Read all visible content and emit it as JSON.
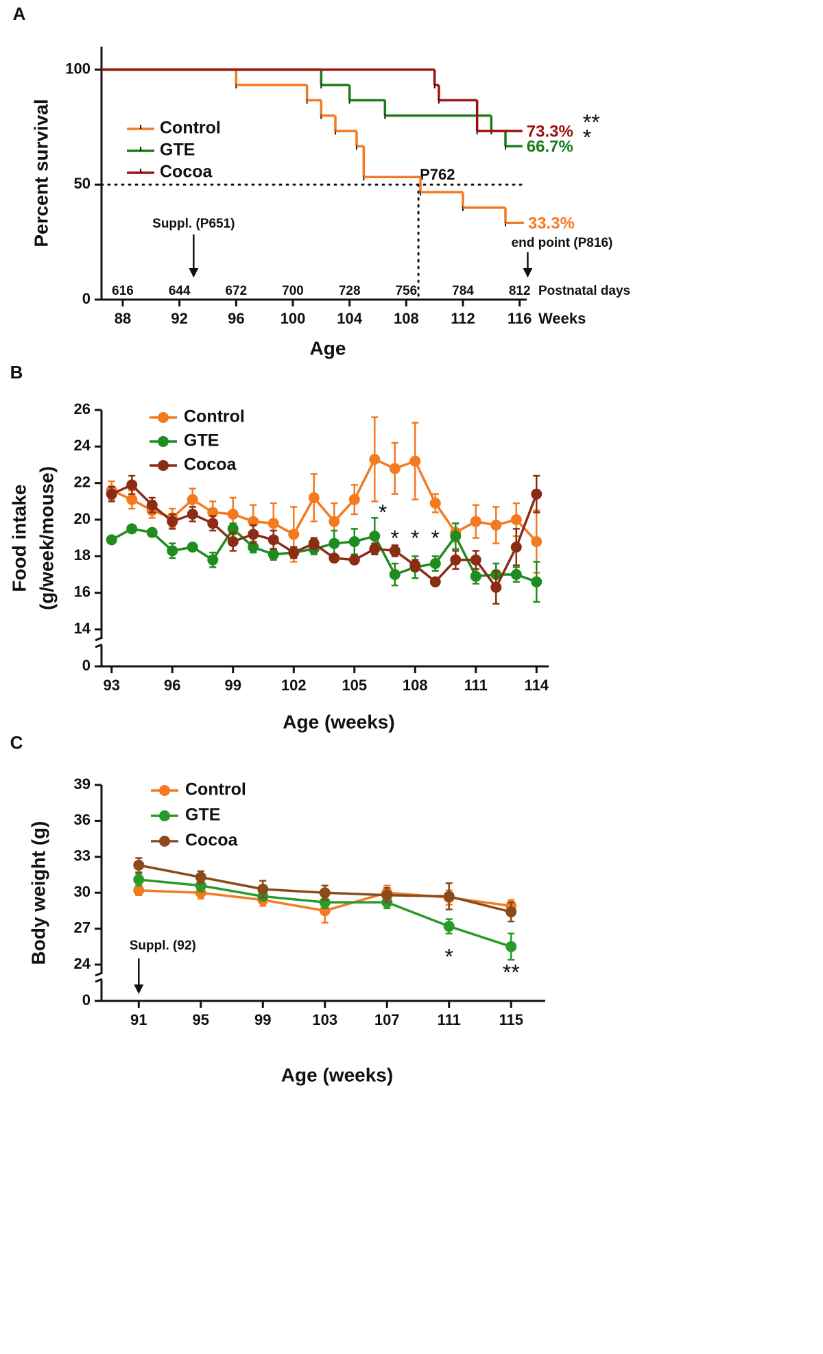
{
  "panels": [
    "A",
    "B",
    "C"
  ],
  "chart_data": [
    {
      "type": "step",
      "y_label": "Percent survival",
      "x_label": "Age",
      "x_unit_label": "Weeks",
      "x2_unit_label": "Postnatal days",
      "xlim": [
        86.5,
        116.5
      ],
      "xticks": [
        88,
        92,
        96,
        100,
        104,
        108,
        112,
        116
      ],
      "x2lim": [
        605.5,
        815.5
      ],
      "x2ticks": [
        616,
        644,
        672,
        700,
        728,
        756,
        784,
        812
      ],
      "ylim": [
        0,
        110
      ],
      "yticks": [
        0,
        50,
        100
      ],
      "hline": 50,
      "vline": 108.86,
      "vline_label": "P762",
      "series": [
        {
          "name": "Control",
          "color": "#f47a20",
          "x": [
            86.5,
            96,
            101,
            102,
            103,
            104.5,
            105,
            109,
            112,
            115,
            116.3
          ],
          "values": [
            100,
            93.3,
            86.7,
            80,
            73.3,
            66.7,
            53.3,
            46.7,
            40,
            33.3,
            33.3
          ],
          "end_label": "33.3%"
        },
        {
          "name": "GTE",
          "color": "#1a7a1a",
          "x": [
            86.5,
            102,
            104,
            106.5,
            114,
            115,
            116.2
          ],
          "values": [
            100,
            93.3,
            86.7,
            80,
            73.3,
            66.7,
            66.7
          ],
          "end_label": "66.7%",
          "significance": "*"
        },
        {
          "name": "Cocoa",
          "color": "#9e1010",
          "x": [
            86.5,
            110,
            110.3,
            113,
            116.2
          ],
          "values": [
            100,
            93.3,
            86.7,
            73.3,
            73.3
          ],
          "end_label": "73.3%",
          "significance": "**"
        }
      ],
      "annotations": [
        {
          "text": "Suppl. (P651)",
          "x": 93,
          "arrow": true
        },
        {
          "text": "end point (P816)",
          "x": 116.57,
          "arrow": true
        }
      ]
    },
    {
      "type": "line",
      "y_label": [
        "Food intake",
        "(g/week/mouse)"
      ],
      "x_label": "Age (weeks)",
      "xlim": [
        92.5,
        114.6
      ],
      "xticks": [
        93,
        96,
        99,
        102,
        105,
        108,
        111,
        114
      ],
      "ylim": [
        14,
        26
      ],
      "yticks": [
        14,
        16,
        18,
        20,
        22,
        24,
        26
      ],
      "break_ticks": [
        0
      ],
      "x": [
        93,
        94,
        95,
        96,
        97,
        98,
        99,
        100,
        101,
        102,
        103,
        104,
        105,
        106,
        107,
        108,
        109,
        110,
        111,
        112,
        113,
        114
      ],
      "series": [
        {
          "name": "Control",
          "color": "#f47a20",
          "values": [
            21.6,
            21.1,
            20.5,
            20.1,
            21.1,
            20.4,
            20.3,
            19.9,
            19.8,
            19.2,
            21.2,
            19.9,
            21.1,
            23.3,
            22.8,
            23.2,
            20.9,
            19.3,
            19.9,
            19.7,
            20.0,
            18.8
          ],
          "errors": [
            0.5,
            0.5,
            0.4,
            0.5,
            0.6,
            0.6,
            0.9,
            0.9,
            1.1,
            1.5,
            1.3,
            1.0,
            0.8,
            2.3,
            1.4,
            2.1,
            0.5,
            0.5,
            0.9,
            1.0,
            0.9,
            1.7
          ]
        },
        {
          "name": "GTE",
          "color": "#1e8c1e",
          "values": [
            18.9,
            19.5,
            19.3,
            18.3,
            18.5,
            17.8,
            19.5,
            18.5,
            18.1,
            18.2,
            18.4,
            18.7,
            18.8,
            19.1,
            17.0,
            17.4,
            17.6,
            19.1,
            16.9,
            17.0,
            17.0,
            16.6
          ],
          "errors": [
            0.1,
            0.1,
            0.1,
            0.4,
            0.2,
            0.4,
            0.3,
            0.3,
            0.3,
            0.3,
            0.3,
            0.7,
            0.7,
            1.0,
            0.6,
            0.6,
            0.4,
            0.7,
            0.4,
            0.6,
            0.4,
            1.1
          ]
        },
        {
          "name": "Cocoa",
          "color": "#8b2c14",
          "values": [
            21.4,
            21.9,
            20.8,
            19.9,
            20.3,
            19.8,
            18.8,
            19.2,
            18.9,
            18.2,
            18.7,
            17.9,
            17.8,
            18.4,
            18.3,
            17.5,
            16.6,
            17.8,
            17.8,
            16.3,
            18.5,
            21.4
          ],
          "errors": [
            0.4,
            0.5,
            0.4,
            0.4,
            0.4,
            0.4,
            0.5,
            0.5,
            0.5,
            0.3,
            0.3,
            0.2,
            0.2,
            0.3,
            0.3,
            0.3,
            0.2,
            0.5,
            0.5,
            0.9,
            1.0,
            1.0
          ]
        }
      ],
      "annotations": [
        {
          "text": "*",
          "x": 106.4,
          "y": 20.3
        },
        {
          "text": "*",
          "x": 107,
          "y": 18.9
        },
        {
          "text": "*",
          "x": 108,
          "y": 18.9
        },
        {
          "text": "*",
          "x": 109,
          "y": 18.9
        }
      ]
    },
    {
      "type": "line",
      "y_label": "Body weight (g)",
      "x_label": "Age (weeks)",
      "xlim": [
        88.6,
        117.2
      ],
      "xticks": [
        91,
        95,
        99,
        103,
        107,
        111,
        115
      ],
      "ylim": [
        24,
        39
      ],
      "yticks": [
        24,
        27,
        30,
        33,
        36,
        39
      ],
      "break_ticks": [
        0
      ],
      "x": [
        91,
        95,
        99,
        103,
        107,
        111,
        115
      ],
      "series": [
        {
          "name": "Control",
          "color": "#f47a20",
          "values": [
            30.2,
            30.0,
            29.4,
            28.5,
            30.0,
            29.6,
            28.9
          ],
          "errors": [
            0.4,
            0.5,
            0.5,
            1.0,
            0.6,
            0.6,
            0.5
          ]
        },
        {
          "name": "GTE",
          "color": "#2a9a2a",
          "values": [
            31.1,
            30.6,
            29.7,
            29.2,
            29.2,
            27.2,
            25.5
          ],
          "errors": [
            0.5,
            0.5,
            0.3,
            0.5,
            0.5,
            0.6,
            1.1
          ]
        },
        {
          "name": "Cocoa",
          "color": "#8b4a1a",
          "values": [
            32.3,
            31.3,
            30.3,
            30.0,
            29.8,
            29.7,
            28.4
          ],
          "errors": [
            0.6,
            0.5,
            0.7,
            0.6,
            0.6,
            1.1,
            0.8
          ]
        }
      ],
      "annotations": [
        {
          "text": "Suppl. (92)",
          "x": 91,
          "arrow": true
        },
        {
          "text": "*",
          "x": 111,
          "y": 24.5
        },
        {
          "text": "**",
          "x": 115,
          "y": 23.2
        }
      ]
    }
  ]
}
